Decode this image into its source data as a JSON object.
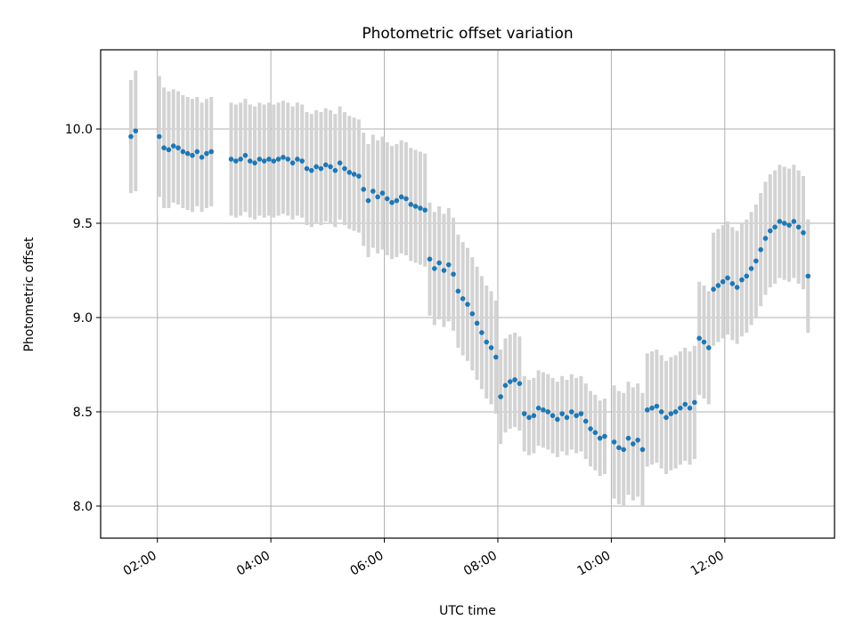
{
  "chart_data": {
    "type": "scatter",
    "title": "Photometric offset variation",
    "xlabel": "UTC time",
    "ylabel": "Photometric offset",
    "xlim": [
      "01:00",
      "13:56"
    ],
    "ylim": [
      7.83,
      10.42
    ],
    "x_ticks": [
      "02:00",
      "04:00",
      "06:00",
      "08:00",
      "10:00",
      "12:00"
    ],
    "y_ticks": [
      "8.0",
      "8.5",
      "9.0",
      "9.5",
      "10.0"
    ],
    "grid": true,
    "legend": "none",
    "marker_color": "#1f77b4",
    "errorbar_color": "#d3d3d3",
    "series": [
      {
        "x": [
          "01:32",
          "01:37",
          "02:02",
          "02:07",
          "02:12",
          "02:17",
          "02:22",
          "02:27",
          "02:32",
          "02:37",
          "02:42",
          "02:47",
          "02:52",
          "02:57",
          "03:18",
          "03:23",
          "03:28",
          "03:33",
          "03:38",
          "03:43",
          "03:48",
          "03:53",
          "03:58",
          "04:03",
          "04:08",
          "04:13",
          "04:18",
          "04:23",
          "04:28",
          "04:33",
          "04:38",
          "04:43",
          "04:48",
          "04:53",
          "04:58",
          "05:03",
          "05:08",
          "05:13",
          "05:18",
          "05:23",
          "05:28",
          "05:33",
          "05:38",
          "05:43",
          "05:48",
          "05:53",
          "05:58",
          "06:03",
          "06:08",
          "06:13",
          "06:18",
          "06:23",
          "06:28",
          "06:33",
          "06:38",
          "06:43",
          "06:48",
          "06:53",
          "06:58",
          "07:03",
          "07:08",
          "07:13",
          "07:18",
          "07:23",
          "07:28",
          "07:33",
          "07:38",
          "07:43",
          "07:48",
          "07:53",
          "07:58",
          "08:03",
          "08:08",
          "08:13",
          "08:18",
          "08:23",
          "08:28",
          "08:33",
          "08:38",
          "08:43",
          "08:48",
          "08:53",
          "08:58",
          "09:03",
          "09:08",
          "09:13",
          "09:18",
          "09:23",
          "09:28",
          "09:33",
          "09:38",
          "09:43",
          "09:48",
          "09:53",
          "10:03",
          "10:08",
          "10:13",
          "10:18",
          "10:23",
          "10:28",
          "10:33",
          "10:38",
          "10:43",
          "10:48",
          "10:53",
          "10:58",
          "11:03",
          "11:08",
          "11:13",
          "11:18",
          "11:23",
          "11:28",
          "11:33",
          "11:38",
          "11:43",
          "11:48",
          "11:53",
          "11:58",
          "12:03",
          "12:08",
          "12:13",
          "12:18",
          "12:23",
          "12:28",
          "12:33",
          "12:38",
          "12:43",
          "12:48",
          "12:53",
          "12:58",
          "13:03",
          "13:08",
          "13:13",
          "13:18",
          "13:23",
          "13:28"
        ],
        "y": [
          9.96,
          9.99,
          9.96,
          9.9,
          9.89,
          9.91,
          9.9,
          9.88,
          9.87,
          9.86,
          9.88,
          9.85,
          9.87,
          9.88,
          9.84,
          9.83,
          9.84,
          9.86,
          9.83,
          9.82,
          9.84,
          9.83,
          9.84,
          9.83,
          9.84,
          9.85,
          9.84,
          9.82,
          9.84,
          9.83,
          9.79,
          9.78,
          9.8,
          9.79,
          9.81,
          9.8,
          9.78,
          9.82,
          9.79,
          9.77,
          9.76,
          9.75,
          9.68,
          9.62,
          9.67,
          9.64,
          9.66,
          9.63,
          9.61,
          9.62,
          9.64,
          9.63,
          9.6,
          9.59,
          9.58,
          9.57,
          9.31,
          9.26,
          9.29,
          9.25,
          9.28,
          9.23,
          9.14,
          9.1,
          9.07,
          9.02,
          8.97,
          8.92,
          8.87,
          8.84,
          8.79,
          8.58,
          8.64,
          8.66,
          8.67,
          8.65,
          8.49,
          8.47,
          8.48,
          8.52,
          8.51,
          8.5,
          8.48,
          8.46,
          8.49,
          8.47,
          8.5,
          8.48,
          8.49,
          8.45,
          8.41,
          8.39,
          8.36,
          8.37,
          8.34,
          8.31,
          8.3,
          8.36,
          8.33,
          8.35,
          8.3,
          8.51,
          8.52,
          8.53,
          8.5,
          8.47,
          8.49,
          8.5,
          8.52,
          8.54,
          8.52,
          8.55,
          8.89,
          8.87,
          8.84,
          9.15,
          9.17,
          9.19,
          9.21,
          9.18,
          9.16,
          9.2,
          9.22,
          9.26,
          9.3,
          9.36,
          9.42,
          9.46,
          9.48,
          9.51,
          9.5,
          9.49,
          9.51,
          9.48,
          9.45,
          9.22
        ],
        "yerr": [
          0.3,
          0.32,
          0.32,
          0.32,
          0.31,
          0.3,
          0.3,
          0.3,
          0.3,
          0.3,
          0.29,
          0.29,
          0.29,
          0.29,
          0.3,
          0.3,
          0.3,
          0.3,
          0.3,
          0.3,
          0.3,
          0.3,
          0.3,
          0.3,
          0.3,
          0.3,
          0.3,
          0.3,
          0.3,
          0.3,
          0.3,
          0.3,
          0.3,
          0.3,
          0.3,
          0.3,
          0.3,
          0.3,
          0.3,
          0.3,
          0.3,
          0.3,
          0.3,
          0.3,
          0.3,
          0.3,
          0.3,
          0.3,
          0.3,
          0.3,
          0.3,
          0.3,
          0.3,
          0.3,
          0.3,
          0.3,
          0.3,
          0.3,
          0.3,
          0.3,
          0.3,
          0.3,
          0.3,
          0.3,
          0.3,
          0.3,
          0.3,
          0.3,
          0.3,
          0.3,
          0.3,
          0.25,
          0.25,
          0.25,
          0.25,
          0.25,
          0.2,
          0.2,
          0.2,
          0.2,
          0.2,
          0.2,
          0.2,
          0.2,
          0.2,
          0.2,
          0.2,
          0.2,
          0.2,
          0.2,
          0.2,
          0.2,
          0.2,
          0.2,
          0.3,
          0.3,
          0.3,
          0.3,
          0.3,
          0.3,
          0.3,
          0.3,
          0.3,
          0.3,
          0.3,
          0.3,
          0.3,
          0.3,
          0.3,
          0.3,
          0.3,
          0.3,
          0.3,
          0.3,
          0.3,
          0.3,
          0.3,
          0.3,
          0.3,
          0.3,
          0.3,
          0.3,
          0.3,
          0.3,
          0.3,
          0.3,
          0.3,
          0.3,
          0.3,
          0.3,
          0.3,
          0.3,
          0.3,
          0.3,
          0.3,
          0.3
        ]
      }
    ]
  }
}
